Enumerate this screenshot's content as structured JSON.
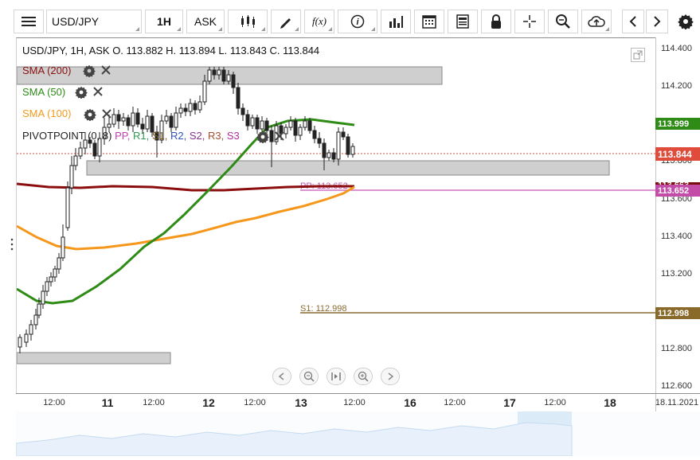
{
  "toolbar": {
    "symbol": "USD/JPY",
    "interval": "1H",
    "price_type": "ASK",
    "fx_label": "f(x)",
    "icons": [
      "menu-icon",
      "candlestick-type-icon",
      "draw-pencil-icon",
      "function-icon",
      "info-icon",
      "bar-chart-icon",
      "calendar-icon",
      "report-icon",
      "lock-icon",
      "crosshair-icon",
      "zoom-icon",
      "cloud-upload-icon",
      "chevron-left-icon",
      "chevron-right-icon",
      "settings-gear-icon"
    ]
  },
  "header": {
    "ohlc": "USD/JPY, 1H, ASK    O. 113.882 H. 113.894 L. 113.843 C. 113.844"
  },
  "indicators": [
    {
      "label": "SMA (200)",
      "color": "#8b1010"
    },
    {
      "label": "SMA (50)",
      "color": "#2e8b16"
    },
    {
      "label": "SMA (100)",
      "color": "#f39a1c"
    },
    {
      "label": "PIVOTPOINT (0, 8)",
      "color": "#222222"
    }
  ],
  "pivot_legend": {
    "items": [
      {
        "text": "PP,",
        "color": "#c040b0"
      },
      {
        "text": "R1,",
        "color": "#2e9a50"
      },
      {
        "text": "S1,",
        "color": "#7a5a20"
      },
      {
        "text": "R2,",
        "color": "#3050c0"
      },
      {
        "text": "S2,",
        "color": "#8a3090"
      },
      {
        "text": "R3,",
        "color": "#a05030"
      },
      {
        "text": "S3",
        "color": "#b030a0"
      }
    ]
  },
  "price_axis": {
    "labels": [
      "114.400",
      "114.200",
      "113.600",
      "113.400",
      "113.200",
      "112.800",
      "112.600"
    ],
    "badges": {
      "sma50": {
        "text": "113.999",
        "color": "#2e8b16"
      },
      "last": {
        "text": "113.844",
        "color": "#e04c3c"
      },
      "sma200": {
        "text": "113.663",
        "color": "#7a0c0c"
      },
      "pp": {
        "text": "113.652",
        "color": "#c24ca8"
      },
      "s1": {
        "text": "112.998",
        "color": "#8a6a2a"
      }
    },
    "hidden_label": "113.800"
  },
  "chart_labels": {
    "pp": "PP: 113.652",
    "s1": "S1: 112.998"
  },
  "time_axis": {
    "ticks": [
      {
        "text": "12:00",
        "bold": false
      },
      {
        "text": "11",
        "bold": true
      },
      {
        "text": "12:00",
        "bold": false
      },
      {
        "text": "12",
        "bold": true
      },
      {
        "text": "12:00",
        "bold": false
      },
      {
        "text": "13",
        "bold": true
      },
      {
        "text": "12:00",
        "bold": false
      },
      {
        "text": "16",
        "bold": true
      },
      {
        "text": "12:00",
        "bold": false
      },
      {
        "text": "17",
        "bold": true
      },
      {
        "text": "12:00",
        "bold": false
      },
      {
        "text": "18",
        "bold": true
      }
    ],
    "date": "18.11.2021"
  },
  "nav_buttons": [
    "scroll-left-icon",
    "zoom-out-icon",
    "reset-view-icon",
    "zoom-in-icon",
    "scroll-right-icon"
  ],
  "colors": {
    "sma200": "#8b0d0d",
    "sma50": "#2e8b16",
    "sma100": "#f5971a",
    "pivot_pp": "#d070c0",
    "pivot_s1": "#8a6a30",
    "candle": "#222222",
    "last_line": "#e04c3c"
  }
}
